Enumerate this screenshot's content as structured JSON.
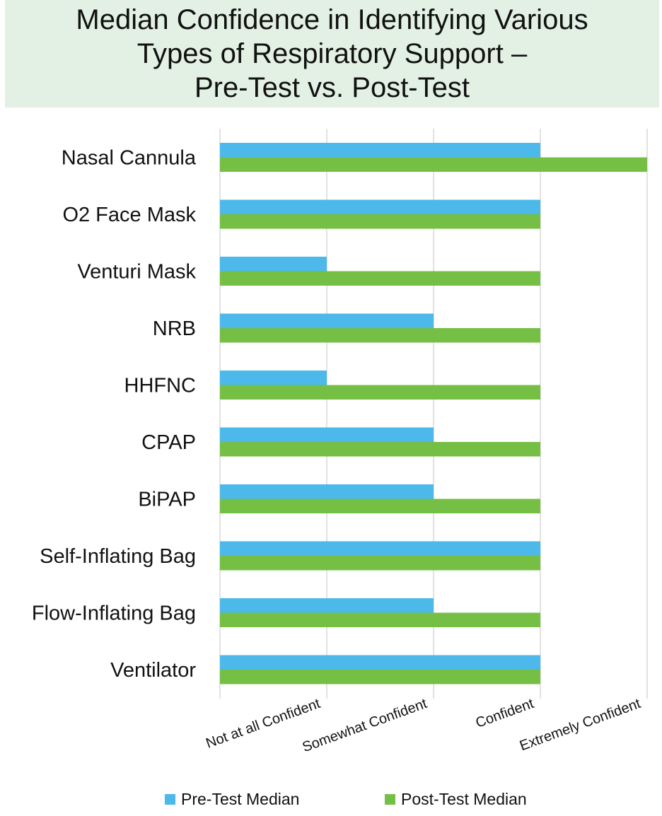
{
  "chart_data": {
    "type": "bar",
    "orientation": "horizontal",
    "title": [
      "Median Confidence in Identifying Various",
      "Types of Respiratory Support –",
      "Pre-Test vs. Post-Test"
    ],
    "categories": [
      "Nasal Cannula",
      "O2 Face Mask",
      "Venturi Mask",
      "NRB",
      "HHFNC",
      "CPAP",
      "BiPAP",
      "Self-Inflating Bag",
      "Flow-Inflating Bag",
      "Ventilator"
    ],
    "x_tick_labels": [
      "Not at all Confident",
      "Somewhat Confident",
      "Confident",
      "Extremely Confident"
    ],
    "x_tick_values": [
      1,
      2,
      3,
      4
    ],
    "xlim": [
      0,
      4
    ],
    "series": [
      {
        "name": "Pre-Test Median",
        "color": "#4cb9ea",
        "values": [
          3,
          3,
          1,
          2,
          1,
          2,
          2,
          3,
          2,
          3
        ]
      },
      {
        "name": "Post-Test Median",
        "color": "#74bf44",
        "values": [
          4,
          3,
          3,
          3,
          3,
          3,
          3,
          3,
          3,
          3
        ]
      }
    ],
    "grid": "vertical",
    "legend_position": "bottom"
  }
}
